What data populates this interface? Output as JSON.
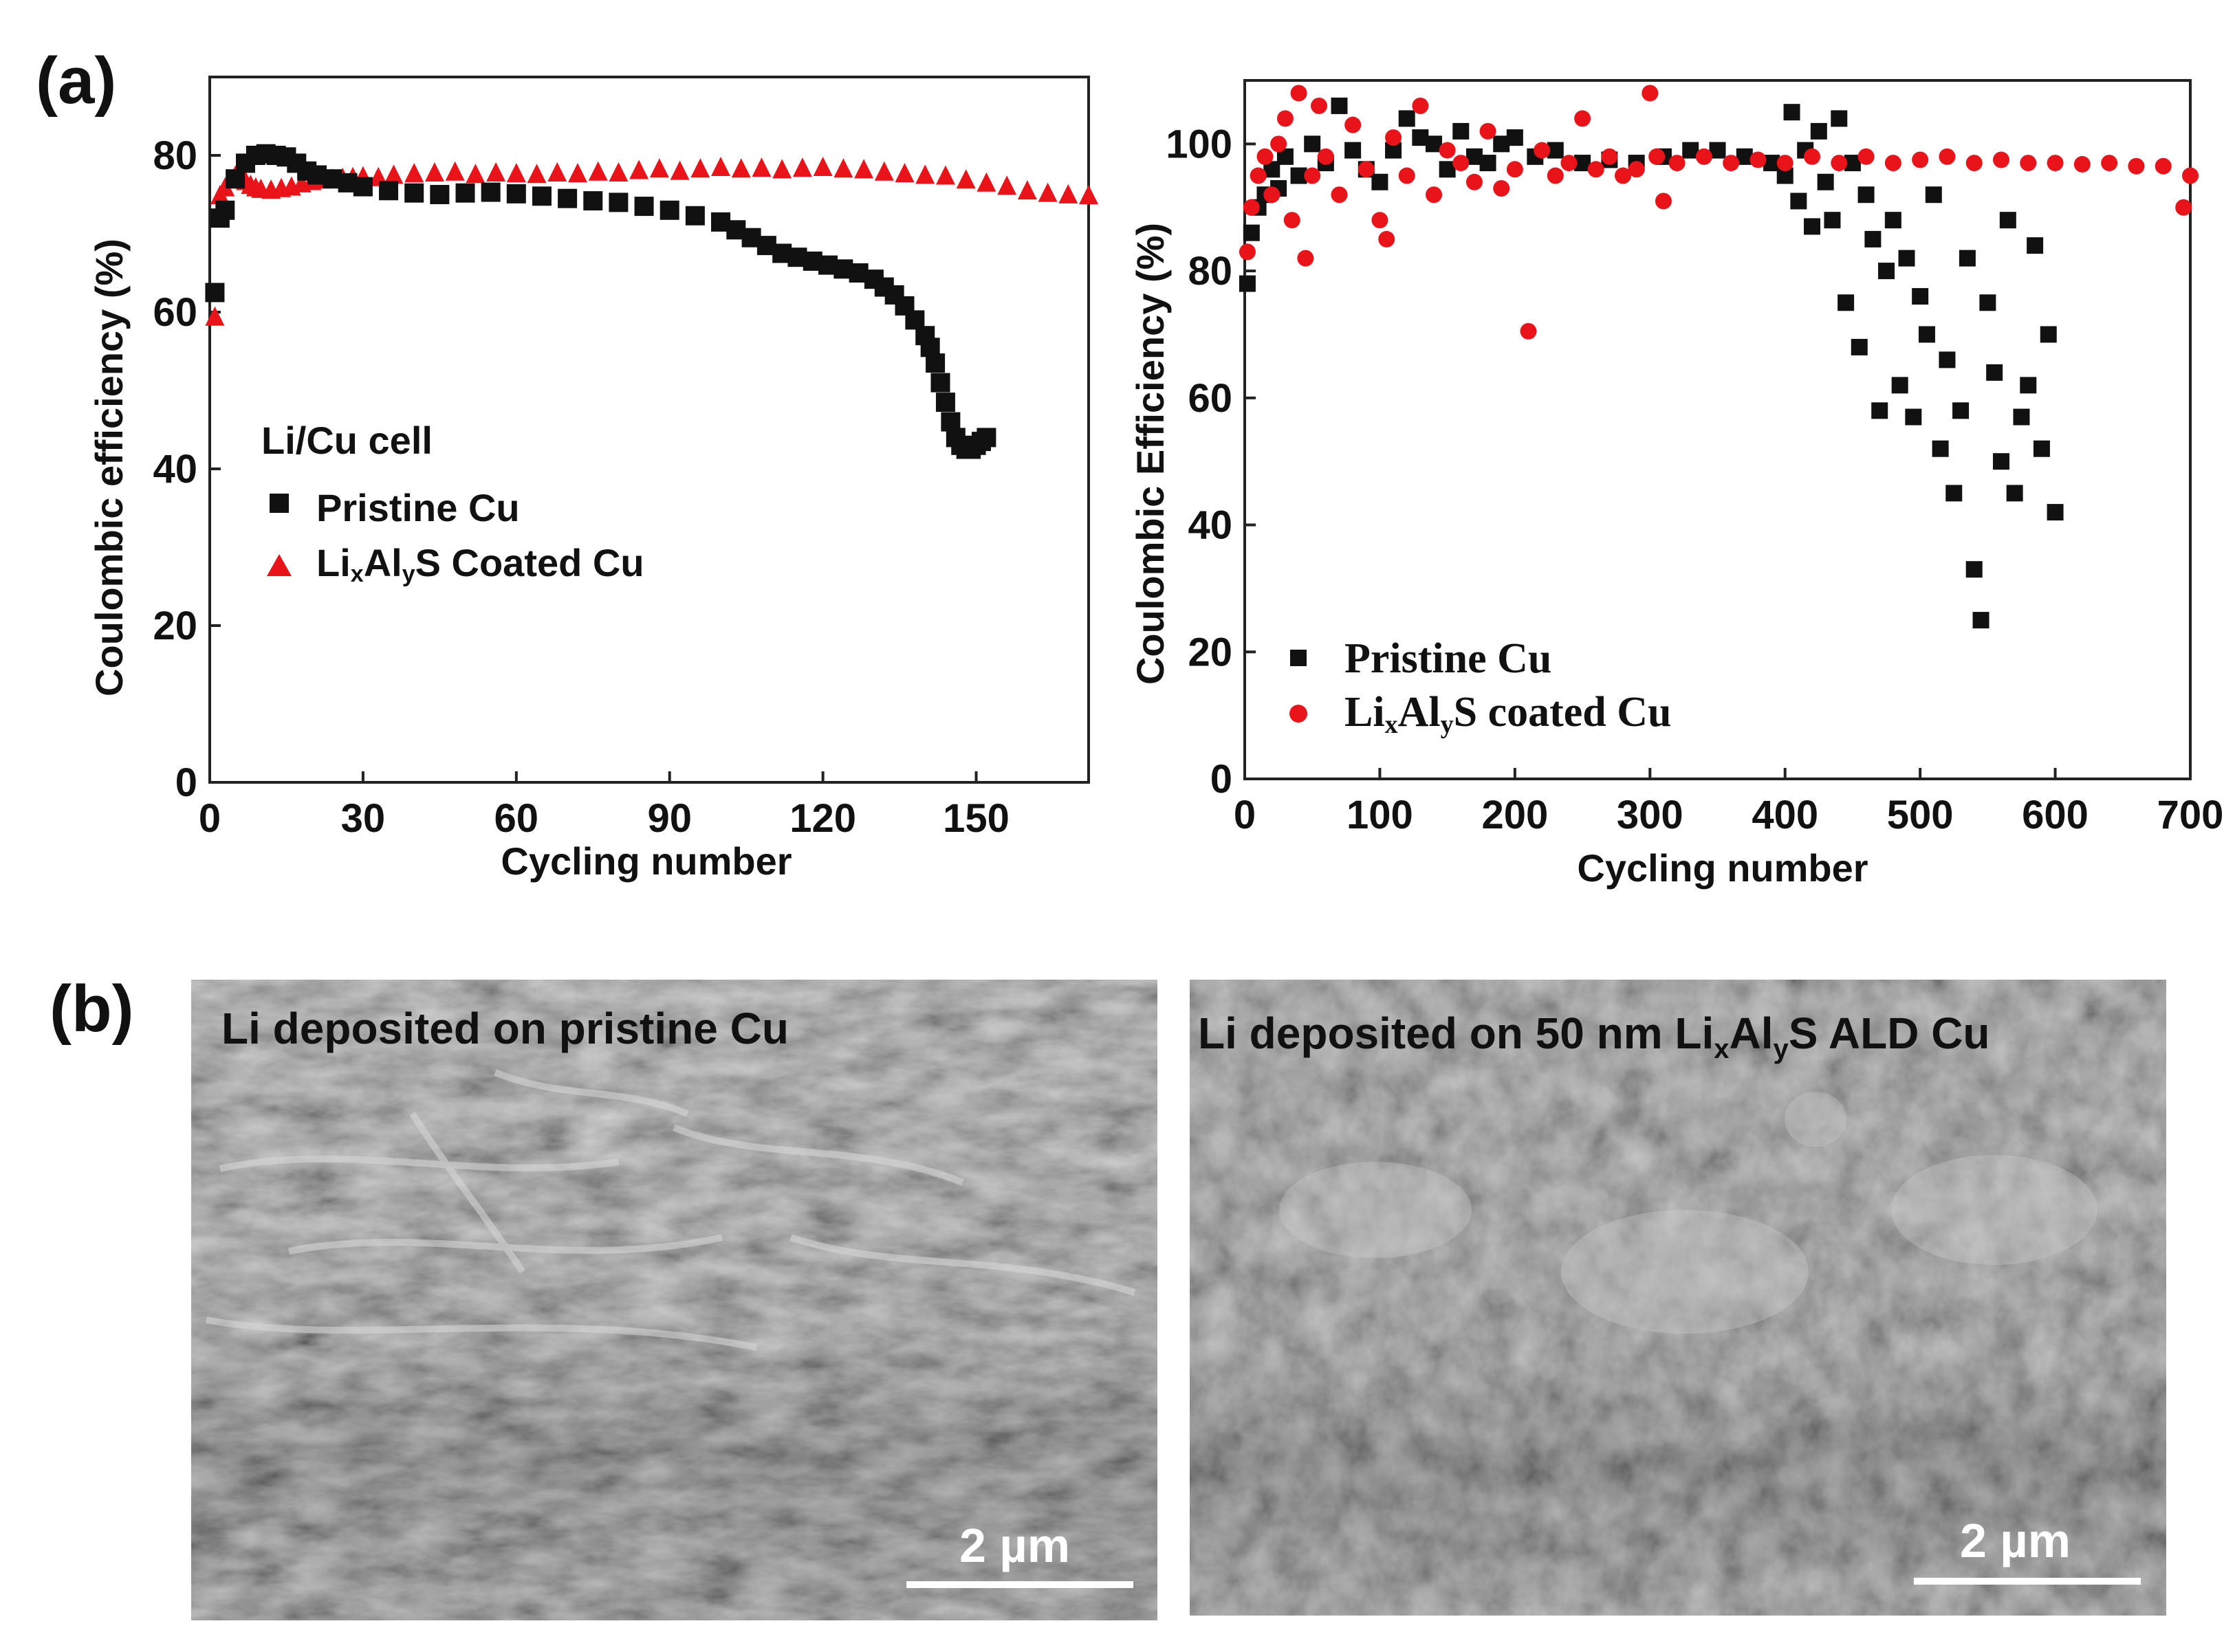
{
  "colors": {
    "pristine": "#111111",
    "coated": "#e8141a",
    "axis": "#222222",
    "sem_dark": "#5a5a5a",
    "sem_light": "#c8c8c8"
  },
  "panel_a": {
    "letter": "(a)"
  },
  "panel_b": {
    "letter": "(b)"
  },
  "chart_data": [
    {
      "type": "scatter",
      "title": "",
      "xlabel": "Cycling number",
      "ylabel": "Coulombic efficiency (%)",
      "xlim": [
        0,
        172
      ],
      "ylim": [
        0,
        90
      ],
      "xticks": [
        0,
        30,
        60,
        90,
        120,
        150
      ],
      "yticks": [
        0,
        20,
        40,
        60,
        80
      ],
      "xtick_labels": [
        "0",
        "30",
        "60",
        "90",
        "120",
        "150"
      ],
      "ytick_labels": [
        "0",
        "20",
        "40",
        "60",
        "80"
      ],
      "legend_title": "Li/Cu cell",
      "legend_position": "lower-left",
      "series": [
        {
          "name": "Pristine Cu",
          "marker": "square",
          "color": "#111111",
          "x": [
            1,
            2,
            3,
            5,
            7,
            9,
            11,
            13,
            15,
            17,
            19,
            21,
            24,
            27,
            30,
            35,
            40,
            45,
            50,
            55,
            60,
            65,
            70,
            75,
            80,
            85,
            90,
            95,
            100,
            103,
            106,
            109,
            112,
            115,
            118,
            121,
            124,
            127,
            130,
            132,
            134,
            136,
            138,
            140,
            141,
            142,
            143,
            144,
            145,
            146,
            147,
            148,
            149,
            150,
            151,
            152
          ],
          "y": [
            62.5,
            72,
            73,
            77,
            79,
            80,
            80.2,
            80,
            79.8,
            79,
            78,
            77.5,
            77,
            76.5,
            76,
            75.5,
            75.2,
            75,
            75.2,
            75.3,
            75.1,
            74.8,
            74.5,
            74.2,
            74,
            73.5,
            73,
            72.3,
            71.5,
            70.5,
            69.5,
            68.5,
            67.5,
            67,
            66.5,
            66,
            65.5,
            65,
            64.2,
            63.2,
            62.2,
            60.8,
            59,
            57,
            55.5,
            53.5,
            51,
            48.5,
            46,
            44,
            43,
            42.5,
            42.5,
            43,
            43.5,
            44
          ]
        },
        {
          "name": "LixAlyS  Coated Cu",
          "marker": "triangle",
          "color": "#e8141a",
          "x": [
            1,
            2,
            3,
            4,
            5,
            6,
            7,
            8,
            9,
            10,
            12,
            14,
            16,
            18,
            20,
            22,
            24,
            26,
            28,
            30,
            33,
            36,
            40,
            44,
            48,
            52,
            56,
            60,
            64,
            68,
            72,
            76,
            80,
            84,
            88,
            92,
            96,
            100,
            104,
            108,
            112,
            116,
            120,
            124,
            128,
            132,
            136,
            140,
            144,
            148,
            152,
            156,
            160,
            164,
            168,
            172
          ],
          "y": [
            59.5,
            75,
            76,
            77,
            77.5,
            77.2,
            76.8,
            76.3,
            76,
            75.8,
            75.7,
            75.9,
            76.1,
            76.5,
            76.8,
            77,
            77.1,
            77.2,
            77.3,
            77.4,
            77.3,
            77.6,
            77.8,
            77.9,
            78,
            77.7,
            77.9,
            77.8,
            77.7,
            77.9,
            77.8,
            78,
            77.9,
            78.2,
            78.4,
            78.1,
            78.4,
            78.6,
            78.4,
            78.5,
            78.3,
            78.5,
            78.6,
            78.4,
            78.3,
            78,
            77.8,
            77.6,
            77.5,
            77,
            76.6,
            76.2,
            75.6,
            75.3,
            75.1,
            75
          ]
        }
      ]
    },
    {
      "type": "scatter",
      "title": "",
      "xlabel": "Cycling number",
      "ylabel": "Coulombic Efficiency (%)",
      "xlim": [
        0,
        700
      ],
      "ylim": [
        0,
        110
      ],
      "xticks": [
        0,
        100,
        200,
        300,
        400,
        500,
        600,
        700
      ],
      "yticks": [
        0,
        20,
        40,
        60,
        80,
        100
      ],
      "xtick_labels": [
        "0",
        "100",
        "200",
        "300",
        "400",
        "500",
        "600",
        "700"
      ],
      "ytick_labels": [
        "0",
        "20",
        "40",
        "60",
        "80",
        "100"
      ],
      "legend_position": "lower-left",
      "series": [
        {
          "name": "Pristine Cu",
          "marker": "square",
          "color": "#111111",
          "x": [
            2,
            5,
            10,
            15,
            20,
            25,
            30,
            40,
            50,
            60,
            70,
            80,
            90,
            100,
            110,
            120,
            130,
            140,
            150,
            160,
            170,
            180,
            190,
            200,
            215,
            230,
            250,
            270,
            290,
            310,
            330,
            350,
            370,
            390,
            400,
            405,
            410,
            415,
            420,
            425,
            430,
            435,
            440,
            445,
            450,
            455,
            460,
            465,
            470,
            475,
            480,
            485,
            490,
            495,
            500,
            505,
            510,
            515,
            520,
            525,
            530,
            535,
            540,
            545,
            550,
            555,
            560,
            565,
            570,
            575,
            580,
            585,
            590,
            595,
            600
          ],
          "y": [
            78,
            86,
            90,
            92,
            96,
            93,
            98,
            95,
            100,
            97,
            106,
            99,
            96,
            94,
            99,
            104,
            101,
            100,
            96,
            102,
            98,
            97,
            100,
            101,
            98,
            99,
            97,
            97.5,
            97,
            98,
            99,
            99,
            98,
            97,
            95,
            105,
            91,
            99,
            87,
            102,
            94,
            88,
            104,
            75,
            97,
            68,
            92,
            85,
            58,
            80,
            88,
            62,
            82,
            57,
            76,
            70,
            92,
            52,
            66,
            45,
            58,
            82,
            33,
            25,
            75,
            64,
            50,
            88,
            45,
            57,
            62,
            84,
            52,
            70,
            42
          ]
        },
        {
          "name": "LixAlyS coated Cu",
          "marker": "circle",
          "color": "#e8141a",
          "x": [
            2,
            5,
            10,
            15,
            20,
            25,
            30,
            35,
            40,
            45,
            50,
            55,
            60,
            70,
            80,
            90,
            100,
            105,
            110,
            120,
            130,
            140,
            150,
            160,
            170,
            180,
            190,
            200,
            210,
            220,
            230,
            240,
            250,
            260,
            270,
            280,
            290,
            300,
            305,
            310,
            320,
            340,
            360,
            380,
            400,
            420,
            440,
            460,
            480,
            500,
            520,
            540,
            560,
            580,
            600,
            620,
            640,
            660,
            680,
            695,
            700
          ],
          "y": [
            83,
            90,
            95,
            98,
            92,
            100,
            104,
            88,
            108,
            82,
            95,
            106,
            98,
            92,
            103,
            96,
            88,
            85,
            101,
            95,
            106,
            92,
            99,
            97,
            94,
            102,
            93,
            96,
            70.5,
            99,
            95,
            97,
            104,
            96,
            98,
            95,
            96,
            108,
            98,
            91,
            97,
            98,
            97,
            97.5,
            97,
            98,
            97,
            98,
            97,
            97.5,
            98,
            97,
            97.5,
            97,
            97,
            96.8,
            97,
            96.5,
            96.5,
            90,
            95
          ]
        }
      ]
    }
  ],
  "chart1": {
    "xtick_labels": [
      "0",
      "30",
      "60",
      "90",
      "120",
      "150"
    ],
    "ytick_labels": [
      "0",
      "20",
      "40",
      "60",
      "80"
    ],
    "xlabel": "Cycling number",
    "ylabel": "Coulombic efficiency (%)",
    "legend_title": "Li/Cu cell",
    "legend_pristine": "Pristine Cu",
    "legend_coated_li": "Li",
    "legend_coated_x": "x",
    "legend_coated_al": "Al",
    "legend_coated_y": "y",
    "legend_coated_rest": "S  Coated Cu"
  },
  "chart2": {
    "xtick_labels": [
      "0",
      "100",
      "200",
      "300",
      "400",
      "500",
      "600",
      "700"
    ],
    "ytick_labels": [
      "0",
      "20",
      "40",
      "60",
      "80",
      "100"
    ],
    "xlabel": "Cycling number",
    "ylabel": "Coulombic Efficiency (%)",
    "legend_pristine": "Pristine Cu",
    "legend_coated_li": "Li",
    "legend_coated_x": "x",
    "legend_coated_al": "Al",
    "legend_coated_y": "y",
    "legend_coated_rest": "S coated Cu"
  },
  "sem_left": {
    "caption": "Li deposited on pristine Cu",
    "scale_label": "2 µm"
  },
  "sem_right": {
    "caption_prefix": "Li deposited on 50 nm Li",
    "caption_sub_x": "x",
    "caption_al": "Al",
    "caption_sub_y": "y",
    "caption_suffix": "S ALD Cu",
    "scale_label": "2 µm"
  }
}
